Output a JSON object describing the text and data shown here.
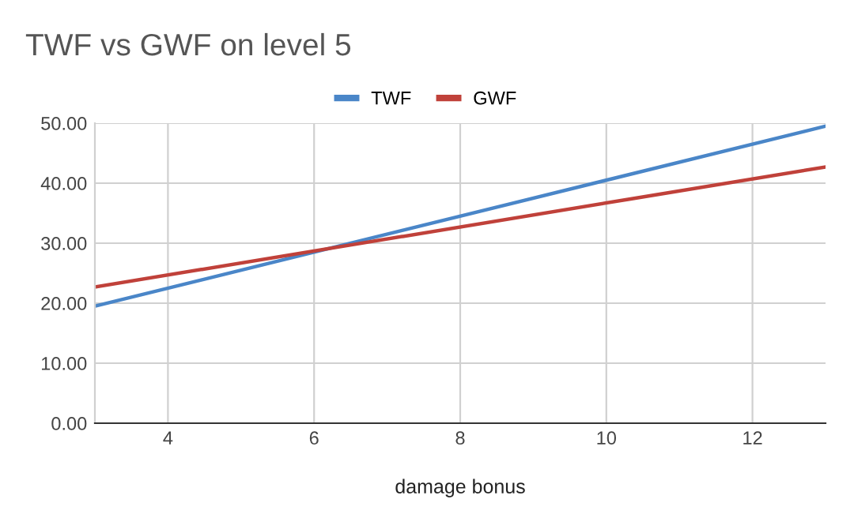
{
  "chart_data": {
    "type": "line",
    "title": "TWF vs GWF on level 5",
    "xlabel": "damage bonus",
    "x": [
      3,
      13
    ],
    "series": [
      {
        "name": "TWF",
        "color": "#4a86c8",
        "values": [
          19.5,
          49.5
        ]
      },
      {
        "name": "GWF",
        "color": "#c0413a",
        "values": [
          22.7,
          42.7
        ]
      }
    ],
    "xlim": [
      3,
      13
    ],
    "xticks": [
      4,
      6,
      8,
      10,
      12
    ],
    "ylim": [
      0,
      50
    ],
    "yticks": [
      {
        "value": 0,
        "label": "0.00"
      },
      {
        "value": 10,
        "label": "10.00"
      },
      {
        "value": 20,
        "label": "20.00"
      },
      {
        "value": 30,
        "label": "30.00"
      },
      {
        "value": 40,
        "label": "40.00"
      },
      {
        "value": 50,
        "label": "50.00"
      }
    ],
    "grid": true,
    "legend": "top",
    "marker": "none",
    "line_style": "solid"
  }
}
